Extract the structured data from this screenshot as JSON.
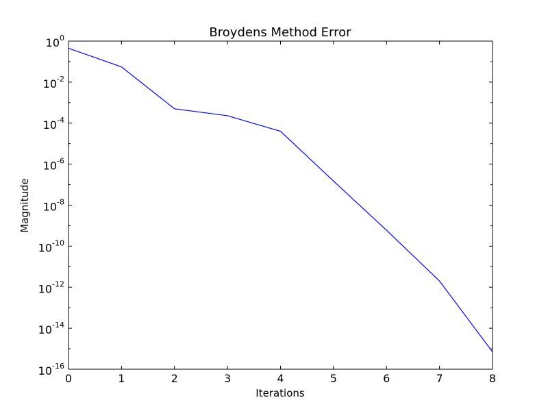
{
  "chart_data": {
    "type": "line",
    "title": "Broydens Method Error",
    "xlabel": "Iterations",
    "ylabel": "Magnitude",
    "y_scale": "log",
    "xlim": [
      0,
      8
    ],
    "ylim": [
      1e-16,
      1
    ],
    "grid": false,
    "x_ticks": [
      "0",
      "1",
      "2",
      "3",
      "4",
      "5",
      "6",
      "7",
      "8"
    ],
    "y_ticks": [
      {
        "base": "10",
        "exp": "0",
        "value": 1
      },
      {
        "base": "10",
        "exp": "-2",
        "value": 0.01
      },
      {
        "base": "10",
        "exp": "-4",
        "value": 0.0001
      },
      {
        "base": "10",
        "exp": "-6",
        "value": 1e-06
      },
      {
        "base": "10",
        "exp": "-8",
        "value": 1e-08
      },
      {
        "base": "10",
        "exp": "-10",
        "value": 1e-10
      },
      {
        "base": "10",
        "exp": "-12",
        "value": 1e-12
      },
      {
        "base": "10",
        "exp": "-14",
        "value": 1e-14
      },
      {
        "base": "10",
        "exp": "-16",
        "value": 1e-16
      }
    ],
    "series": [
      {
        "color": "#0000ff",
        "x": [
          0,
          1,
          2,
          3,
          4,
          5,
          6,
          7,
          8
        ],
        "y": [
          0.45,
          0.055,
          0.0005,
          0.00023,
          4e-05,
          1.5e-07,
          6e-10,
          2e-12,
          7e-16
        ]
      }
    ]
  }
}
